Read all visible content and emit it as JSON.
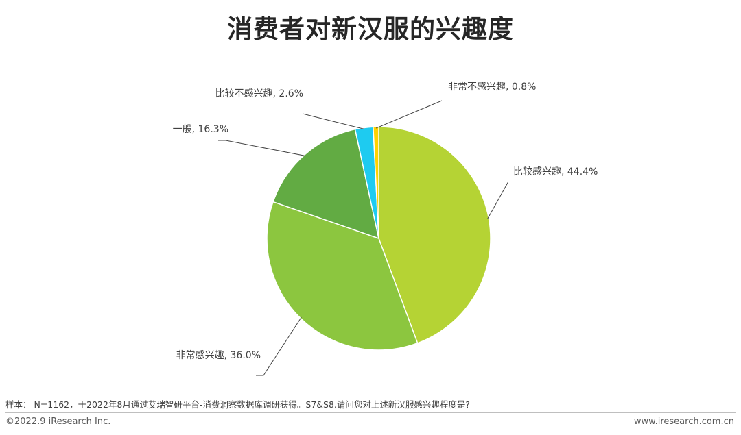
{
  "chart_data": {
    "type": "pie",
    "title": "消费者对新汉服的兴趣度",
    "slices": [
      {
        "label": "比较感兴趣",
        "value": 44.4,
        "display": "44.4%",
        "color": "#b5d334"
      },
      {
        "label": "非常感兴趣",
        "value": 36.0,
        "display": "36.0%",
        "color": "#8cc63f"
      },
      {
        "label": "一般",
        "value": 16.3,
        "display": "16.3%",
        "color": "#62ab43"
      },
      {
        "label": "比较不感兴趣",
        "value": 2.6,
        "display": "2.6%",
        "color": "#1ecbf0"
      },
      {
        "label": "非常不感兴趣",
        "value": 0.8,
        "display": "0.8%",
        "color": "#ffd200"
      }
    ]
  },
  "footer": {
    "note": "样本： N=1162，于2022年8月通过艾瑞智研平台-消费洞察数据库调研获得。S7&S8.请问您对上述新汉服感兴趣程度是?",
    "copyright": "©2022.9 iResearch Inc.",
    "website": "www.iresearch.com.cn"
  }
}
